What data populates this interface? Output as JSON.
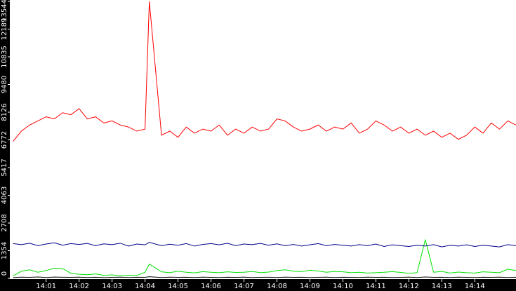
{
  "chart_data": {
    "type": "line",
    "x": [
      840,
      840.25,
      840.5,
      840.75,
      841,
      841.25,
      841.5,
      841.75,
      842,
      842.25,
      842.5,
      842.75,
      843,
      843.25,
      843.5,
      843.75,
      844,
      844.13,
      844.5,
      844.75,
      845,
      845.25,
      845.5,
      845.75,
      846,
      846.25,
      846.5,
      846.75,
      847,
      847.25,
      847.5,
      847.75,
      848,
      848.25,
      848.5,
      848.75,
      849,
      849.25,
      849.5,
      849.75,
      850,
      850.25,
      850.5,
      850.75,
      851,
      851.25,
      851.5,
      851.75,
      852,
      852.25,
      852.5,
      852.75,
      853,
      853.25,
      853.5,
      853.75,
      854,
      854.25,
      854.5,
      854.75,
      855,
      855.25
    ],
    "series": [
      {
        "color": "#ff0000",
        "values": [
          6700,
          7200,
          7500,
          7700,
          7900,
          7800,
          8100,
          8000,
          8300,
          7800,
          7900,
          7600,
          7700,
          7500,
          7400,
          7200,
          7300,
          13544,
          7000,
          7200,
          6900,
          7400,
          7100,
          7300,
          7200,
          7500,
          7000,
          7300,
          7100,
          7400,
          7200,
          7300,
          7800,
          7700,
          7400,
          7200,
          7300,
          7500,
          7200,
          7400,
          7300,
          7600,
          7100,
          7300,
          7700,
          7500,
          7200,
          7400,
          7100,
          7300,
          7000,
          7200,
          6900,
          7100,
          6800,
          7000,
          7400,
          7100,
          7600,
          7300,
          7700,
          7500
        ]
      },
      {
        "color": "#00008b",
        "values": [
          1700,
          1650,
          1720,
          1600,
          1680,
          1740,
          1620,
          1700,
          1660,
          1710,
          1600,
          1690,
          1650,
          1720,
          1580,
          1680,
          1640,
          1760,
          1600,
          1670,
          1620,
          1700,
          1580,
          1660,
          1700,
          1640,
          1720,
          1600,
          1680,
          1650,
          1710,
          1620,
          1690,
          1600,
          1660,
          1580,
          1640,
          1700,
          1600,
          1660,
          1620,
          1580,
          1650,
          1600,
          1680,
          1560,
          1640,
          1600,
          1560,
          1620,
          1580,
          1650,
          1540,
          1620,
          1580,
          1640,
          1560,
          1620,
          1580,
          1540,
          1650,
          1600
        ]
      },
      {
        "color": "#00e000",
        "values": [
          120,
          350,
          420,
          300,
          380,
          500,
          480,
          250,
          200,
          180,
          220,
          150,
          170,
          130,
          160,
          140,
          300,
          700,
          320,
          280,
          350,
          300,
          270,
          330,
          300,
          280,
          320,
          290,
          300,
          340,
          280,
          310,
          380,
          420,
          350,
          330,
          400,
          360,
          300,
          340,
          320,
          280,
          300,
          260,
          280,
          300,
          330,
          290,
          250,
          280,
          1900,
          300,
          340,
          260,
          310,
          280,
          260,
          320,
          300,
          280,
          450,
          380
        ]
      },
      {
        "color": "#000000",
        "values": [
          40,
          60,
          50,
          70,
          45,
          65,
          55,
          50,
          60,
          45,
          55,
          40,
          50,
          60,
          45,
          55,
          50,
          80,
          45,
          60,
          50,
          55,
          45,
          60,
          50,
          45,
          55,
          50,
          60,
          45,
          50,
          55,
          45,
          60,
          50,
          55,
          45,
          50,
          60,
          45,
          55,
          50,
          45,
          60,
          50,
          55,
          45,
          50,
          60,
          45,
          70,
          50,
          55,
          45,
          60,
          50,
          45,
          55,
          50,
          60,
          45,
          55
        ]
      }
    ],
    "xlim": [
      839.9,
      855.25
    ],
    "ylim": [
      0,
      13544
    ],
    "yticks": [
      0,
      1354,
      2708,
      4063,
      5417,
      6772,
      8126,
      9480,
      10835,
      12189,
      13544
    ],
    "xticks": [
      {
        "value": 841,
        "label": "14:01"
      },
      {
        "value": 842,
        "label": "14:02"
      },
      {
        "value": 843,
        "label": "14:03"
      },
      {
        "value": 844,
        "label": "14:04"
      },
      {
        "value": 845,
        "label": "14:05"
      },
      {
        "value": 846,
        "label": "14:06"
      },
      {
        "value": 847,
        "label": "14:07"
      },
      {
        "value": 848,
        "label": "14:08"
      },
      {
        "value": 849,
        "label": "14:09"
      },
      {
        "value": 850,
        "label": "14:10"
      },
      {
        "value": 851,
        "label": "14:11"
      },
      {
        "value": 852,
        "label": "14:12"
      },
      {
        "value": 853,
        "label": "14:13"
      },
      {
        "value": 854,
        "label": "14:14"
      }
    ]
  }
}
